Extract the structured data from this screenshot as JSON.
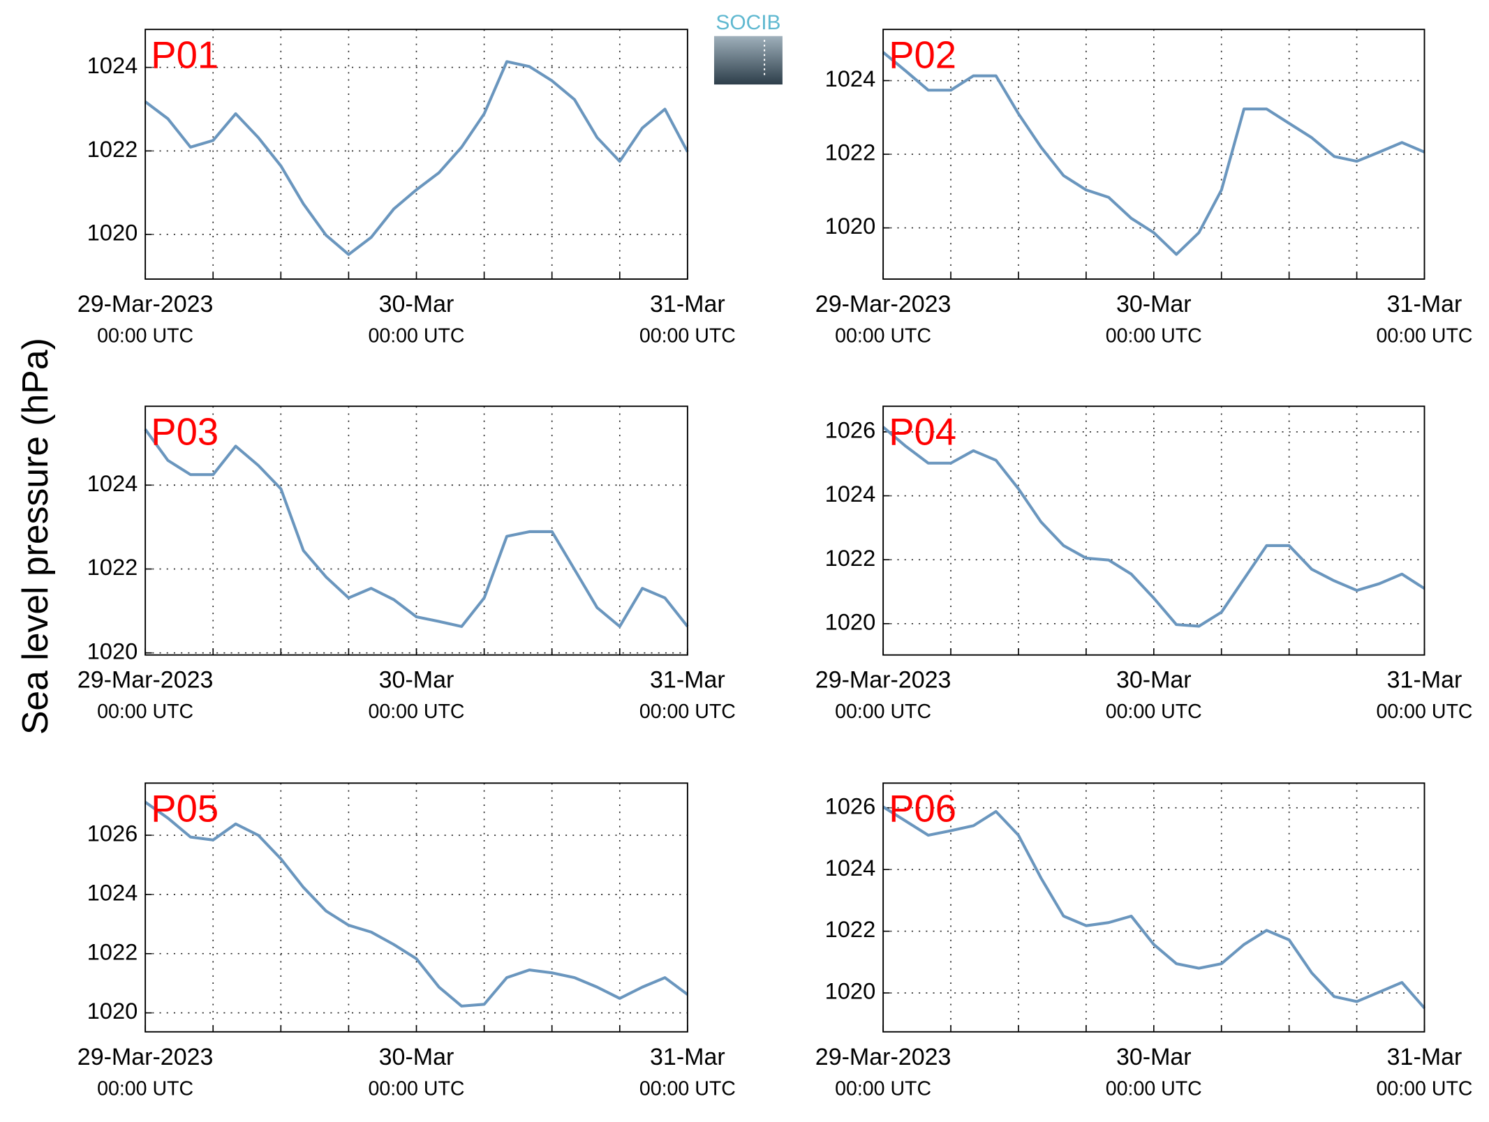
{
  "logo": "SOCIB",
  "ylabel": "Sea level pressure (hPa)",
  "chart_data": [
    {
      "type": "line",
      "title": "P01",
      "color": "#6a96be",
      "grid": true,
      "x": [
        "2023-03-29T00:00",
        "2023-03-29T02:00",
        "2023-03-29T04:00",
        "2023-03-29T06:00",
        "2023-03-29T08:00",
        "2023-03-29T10:00",
        "2023-03-29T12:00",
        "2023-03-29T14:00",
        "2023-03-29T16:00",
        "2023-03-29T18:00",
        "2023-03-29T20:00",
        "2023-03-29T22:00",
        "2023-03-30T00:00",
        "2023-03-30T02:00",
        "2023-03-30T04:00",
        "2023-03-30T06:00",
        "2023-03-30T08:00",
        "2023-03-30T10:00",
        "2023-03-30T12:00",
        "2023-03-30T14:00",
        "2023-03-30T16:00",
        "2023-03-30T18:00",
        "2023-03-30T20:00",
        "2023-03-30T22:00",
        "2023-03-31T00:00"
      ],
      "values": [
        1023.18,
        1022.77,
        1022.09,
        1022.25,
        1022.89,
        1022.32,
        1021.64,
        1020.73,
        1019.98,
        1019.52,
        1019.93,
        1020.61,
        1021.07,
        1021.48,
        1022.09,
        1022.89,
        1024.14,
        1024.02,
        1023.68,
        1023.23,
        1022.32,
        1021.75,
        1022.55,
        1023.0,
        1021.98
      ],
      "xlim": [
        "2023-03-29T00:00",
        "2023-03-31T00:00"
      ],
      "xticks": [
        {
          "value": "2023-03-29T00:00",
          "label": "29-Mar-2023",
          "time_label": "00:00 UTC"
        },
        {
          "value": "2023-03-29T06:00"
        },
        {
          "value": "2023-03-29T12:00"
        },
        {
          "value": "2023-03-29T18:00"
        },
        {
          "value": "2023-03-30T00:00",
          "label": "30-Mar",
          "time_label": "00:00 UTC"
        },
        {
          "value": "2023-03-30T06:00"
        },
        {
          "value": "2023-03-30T12:00"
        },
        {
          "value": "2023-03-30T18:00"
        },
        {
          "value": "2023-03-31T00:00",
          "label": "31-Mar",
          "time_label": "00:00 UTC"
        }
      ],
      "ylim": [
        1018.93,
        1024.91
      ],
      "yticks": [
        1020,
        1022,
        1024
      ]
    },
    {
      "type": "line",
      "title": "P02",
      "color": "#6a96be",
      "grid": true,
      "x": [
        "2023-03-29T00:00",
        "2023-03-29T02:00",
        "2023-03-29T04:00",
        "2023-03-29T06:00",
        "2023-03-29T08:00",
        "2023-03-29T10:00",
        "2023-03-29T12:00",
        "2023-03-29T14:00",
        "2023-03-29T16:00",
        "2023-03-29T18:00",
        "2023-03-29T20:00",
        "2023-03-29T22:00",
        "2023-03-30T00:00",
        "2023-03-30T02:00",
        "2023-03-30T04:00",
        "2023-03-30T06:00",
        "2023-03-30T08:00",
        "2023-03-30T10:00",
        "2023-03-30T12:00",
        "2023-03-30T14:00",
        "2023-03-30T16:00",
        "2023-03-30T18:00",
        "2023-03-30T20:00",
        "2023-03-30T22:00",
        "2023-03-31T00:00"
      ],
      "values": [
        1024.77,
        1024.26,
        1023.74,
        1023.74,
        1024.13,
        1024.13,
        1023.1,
        1022.19,
        1021.42,
        1021.03,
        1020.83,
        1020.26,
        1019.87,
        1019.28,
        1019.87,
        1021.03,
        1023.23,
        1023.23,
        1022.84,
        1022.45,
        1021.94,
        1021.81,
        1022.06,
        1022.32,
        1022.06
      ],
      "xlim": [
        "2023-03-29T00:00",
        "2023-03-31T00:00"
      ],
      "xticks": [
        {
          "value": "2023-03-29T00:00",
          "label": "29-Mar-2023",
          "time_label": "00:00 UTC"
        },
        {
          "value": "2023-03-29T06:00"
        },
        {
          "value": "2023-03-29T12:00"
        },
        {
          "value": "2023-03-29T18:00"
        },
        {
          "value": "2023-03-30T00:00",
          "label": "30-Mar",
          "time_label": "00:00 UTC"
        },
        {
          "value": "2023-03-30T06:00"
        },
        {
          "value": "2023-03-30T12:00"
        },
        {
          "value": "2023-03-30T18:00"
        },
        {
          "value": "2023-03-31T00:00",
          "label": "31-Mar",
          "time_label": "00:00 UTC"
        }
      ],
      "ylim": [
        1018.61,
        1025.39
      ],
      "yticks": [
        1020,
        1022,
        1024
      ]
    },
    {
      "type": "line",
      "title": "P03",
      "color": "#6a96be",
      "grid": true,
      "x": [
        "2023-03-29T00:00",
        "2023-03-29T02:00",
        "2023-03-29T04:00",
        "2023-03-29T06:00",
        "2023-03-29T08:00",
        "2023-03-29T10:00",
        "2023-03-29T12:00",
        "2023-03-29T14:00",
        "2023-03-29T16:00",
        "2023-03-29T18:00",
        "2023-03-29T20:00",
        "2023-03-29T22:00",
        "2023-03-30T00:00",
        "2023-03-30T02:00",
        "2023-03-30T04:00",
        "2023-03-30T06:00",
        "2023-03-30T08:00",
        "2023-03-30T10:00",
        "2023-03-30T12:00",
        "2023-03-30T14:00",
        "2023-03-30T16:00",
        "2023-03-30T18:00",
        "2023-03-30T20:00",
        "2023-03-30T22:00",
        "2023-03-31T00:00"
      ],
      "values": [
        1025.33,
        1024.59,
        1024.25,
        1024.25,
        1024.93,
        1024.47,
        1023.91,
        1022.44,
        1021.81,
        1021.31,
        1021.54,
        1021.27,
        1020.86,
        1020.75,
        1020.63,
        1021.31,
        1022.78,
        1022.89,
        1022.89,
        1021.99,
        1021.08,
        1020.63,
        1021.54,
        1021.31,
        1020.63
      ],
      "xlim": [
        "2023-03-29T00:00",
        "2023-03-31T00:00"
      ],
      "xticks": [
        {
          "value": "2023-03-29T00:00",
          "label": "29-Mar-2023",
          "time_label": "00:00 UTC"
        },
        {
          "value": "2023-03-29T06:00"
        },
        {
          "value": "2023-03-29T12:00"
        },
        {
          "value": "2023-03-29T18:00"
        },
        {
          "value": "2023-03-30T00:00",
          "label": "30-Mar",
          "time_label": "00:00 UTC"
        },
        {
          "value": "2023-03-30T06:00"
        },
        {
          "value": "2023-03-30T12:00"
        },
        {
          "value": "2023-03-30T18:00"
        },
        {
          "value": "2023-03-31T00:00",
          "label": "31-Mar",
          "time_label": "00:00 UTC"
        }
      ],
      "ylim": [
        1019.95,
        1025.88
      ],
      "yticks": [
        1020,
        1022,
        1024
      ]
    },
    {
      "type": "line",
      "title": "P04",
      "color": "#6a96be",
      "grid": true,
      "x": [
        "2023-03-29T00:00",
        "2023-03-29T02:00",
        "2023-03-29T04:00",
        "2023-03-29T06:00",
        "2023-03-29T08:00",
        "2023-03-29T10:00",
        "2023-03-29T12:00",
        "2023-03-29T14:00",
        "2023-03-29T16:00",
        "2023-03-29T18:00",
        "2023-03-29T20:00",
        "2023-03-29T22:00",
        "2023-03-30T00:00",
        "2023-03-30T02:00",
        "2023-03-30T04:00",
        "2023-03-30T06:00",
        "2023-03-30T08:00",
        "2023-03-30T10:00",
        "2023-03-30T12:00",
        "2023-03-30T14:00",
        "2023-03-30T16:00",
        "2023-03-30T18:00",
        "2023-03-30T20:00",
        "2023-03-30T22:00",
        "2023-03-31T00:00"
      ],
      "values": [
        1026.15,
        1025.55,
        1025.02,
        1025.02,
        1025.41,
        1025.11,
        1024.22,
        1023.18,
        1022.44,
        1022.05,
        1021.99,
        1021.55,
        1020.8,
        1019.97,
        1019.92,
        1020.36,
        1021.4,
        1022.44,
        1022.44,
        1021.7,
        1021.34,
        1021.04,
        1021.25,
        1021.55,
        1021.1
      ],
      "xlim": [
        "2023-03-29T00:00",
        "2023-03-31T00:00"
      ],
      "xticks": [
        {
          "value": "2023-03-29T00:00",
          "label": "29-Mar-2023",
          "time_label": "00:00 UTC"
        },
        {
          "value": "2023-03-29T06:00"
        },
        {
          "value": "2023-03-29T12:00"
        },
        {
          "value": "2023-03-29T18:00"
        },
        {
          "value": "2023-03-30T00:00",
          "label": "30-Mar",
          "time_label": "00:00 UTC"
        },
        {
          "value": "2023-03-30T06:00"
        },
        {
          "value": "2023-03-30T12:00"
        },
        {
          "value": "2023-03-30T18:00"
        },
        {
          "value": "2023-03-31T00:00",
          "label": "31-Mar",
          "time_label": "00:00 UTC"
        }
      ],
      "ylim": [
        1019.02,
        1026.8
      ],
      "yticks": [
        1020,
        1022,
        1024,
        1026
      ]
    },
    {
      "type": "line",
      "title": "P05",
      "color": "#6a96be",
      "grid": true,
      "x": [
        "2023-03-29T00:00",
        "2023-03-29T02:00",
        "2023-03-29T04:00",
        "2023-03-29T06:00",
        "2023-03-29T08:00",
        "2023-03-29T10:00",
        "2023-03-29T12:00",
        "2023-03-29T14:00",
        "2023-03-29T16:00",
        "2023-03-29T18:00",
        "2023-03-29T20:00",
        "2023-03-29T22:00",
        "2023-03-30T00:00",
        "2023-03-30T02:00",
        "2023-03-30T04:00",
        "2023-03-30T06:00",
        "2023-03-30T08:00",
        "2023-03-30T10:00",
        "2023-03-30T12:00",
        "2023-03-30T14:00",
        "2023-03-30T16:00",
        "2023-03-30T18:00",
        "2023-03-30T20:00",
        "2023-03-30T22:00",
        "2023-03-31T00:00"
      ],
      "values": [
        1027.12,
        1026.58,
        1025.94,
        1025.84,
        1026.38,
        1026.0,
        1025.2,
        1024.24,
        1023.44,
        1022.96,
        1022.73,
        1022.31,
        1021.83,
        1020.87,
        1020.23,
        1020.29,
        1021.19,
        1021.45,
        1021.35,
        1021.19,
        1020.87,
        1020.49,
        1020.87,
        1021.19,
        1020.62
      ],
      "xlim": [
        "2023-03-29T00:00",
        "2023-03-31T00:00"
      ],
      "xticks": [
        {
          "value": "2023-03-29T00:00",
          "label": "29-Mar-2023",
          "time_label": "00:00 UTC"
        },
        {
          "value": "2023-03-29T06:00"
        },
        {
          "value": "2023-03-29T12:00"
        },
        {
          "value": "2023-03-29T18:00"
        },
        {
          "value": "2023-03-30T00:00",
          "label": "30-Mar",
          "time_label": "00:00 UTC"
        },
        {
          "value": "2023-03-30T06:00"
        },
        {
          "value": "2023-03-30T12:00"
        },
        {
          "value": "2023-03-30T18:00"
        },
        {
          "value": "2023-03-31T00:00",
          "label": "31-Mar",
          "time_label": "00:00 UTC"
        }
      ],
      "ylim": [
        1019.36,
        1027.76
      ],
      "yticks": [
        1020,
        1022,
        1024,
        1026
      ]
    },
    {
      "type": "line",
      "title": "P06",
      "color": "#6a96be",
      "grid": true,
      "x": [
        "2023-03-29T00:00",
        "2023-03-29T02:00",
        "2023-03-29T04:00",
        "2023-03-29T06:00",
        "2023-03-29T08:00",
        "2023-03-29T10:00",
        "2023-03-29T12:00",
        "2023-03-29T14:00",
        "2023-03-29T16:00",
        "2023-03-29T18:00",
        "2023-03-29T20:00",
        "2023-03-29T22:00",
        "2023-03-30T00:00",
        "2023-03-30T02:00",
        "2023-03-30T04:00",
        "2023-03-30T06:00",
        "2023-03-30T08:00",
        "2023-03-30T10:00",
        "2023-03-30T12:00",
        "2023-03-30T14:00",
        "2023-03-30T16:00",
        "2023-03-30T18:00",
        "2023-03-30T20:00",
        "2023-03-30T22:00",
        "2023-03-31T00:00"
      ],
      "values": [
        1026.03,
        1025.57,
        1025.11,
        1025.26,
        1025.42,
        1025.88,
        1025.11,
        1023.72,
        1022.49,
        1022.18,
        1022.28,
        1022.49,
        1021.57,
        1020.95,
        1020.8,
        1020.95,
        1021.57,
        1022.03,
        1021.72,
        1020.65,
        1019.88,
        1019.72,
        1020.03,
        1020.34,
        1019.51
      ],
      "xlim": [
        "2023-03-29T00:00",
        "2023-03-31T00:00"
      ],
      "xticks": [
        {
          "value": "2023-03-29T00:00",
          "label": "29-Mar-2023",
          "time_label": "00:00 UTC"
        },
        {
          "value": "2023-03-29T06:00"
        },
        {
          "value": "2023-03-29T12:00"
        },
        {
          "value": "2023-03-29T18:00"
        },
        {
          "value": "2023-03-30T00:00",
          "label": "30-Mar",
          "time_label": "00:00 UTC"
        },
        {
          "value": "2023-03-30T06:00"
        },
        {
          "value": "2023-03-30T12:00"
        },
        {
          "value": "2023-03-30T18:00"
        },
        {
          "value": "2023-03-31T00:00",
          "label": "31-Mar",
          "time_label": "00:00 UTC"
        }
      ],
      "ylim": [
        1018.74,
        1026.8
      ],
      "yticks": [
        1020,
        1022,
        1024,
        1026
      ]
    }
  ]
}
